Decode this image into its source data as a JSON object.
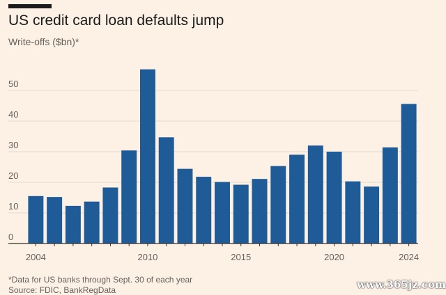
{
  "title": "US credit card loan defaults jump",
  "subtitle": "Write-offs ($bn)*",
  "footnote": "*Data for US banks through Sept. 30 of each year",
  "source": "Source: FDIC, BankRegData",
  "watermark": "www.365jz.com",
  "colors": {
    "background": "#fdf1e6",
    "bar": "#1f5b96",
    "grid": "#e3d9cf",
    "axis": "#33302e",
    "text": "#66605c"
  },
  "chart_data": {
    "type": "bar",
    "title": "US credit card loan defaults jump",
    "ylabel": "Write-offs ($bn)*",
    "xlabel": "",
    "ylim": [
      0,
      60
    ],
    "yticks": [
      0,
      10,
      20,
      30,
      40,
      50
    ],
    "xtick_labels": [
      "2004",
      "2010",
      "2015",
      "2020",
      "2024"
    ],
    "grid": true,
    "categories": [
      "2004",
      "2005",
      "2006",
      "2007",
      "2008",
      "2009",
      "2010",
      "2011",
      "2012",
      "2013",
      "2014",
      "2015",
      "2016",
      "2017",
      "2018",
      "2019",
      "2020",
      "2021",
      "2022",
      "2023",
      "2024"
    ],
    "values": [
      15.5,
      15.2,
      12.3,
      13.7,
      18.3,
      30.4,
      56.9,
      34.7,
      24.4,
      21.8,
      20.1,
      19.2,
      21.1,
      25.3,
      29.0,
      32.0,
      30.0,
      20.3,
      18.6,
      31.4,
      45.6
    ]
  }
}
